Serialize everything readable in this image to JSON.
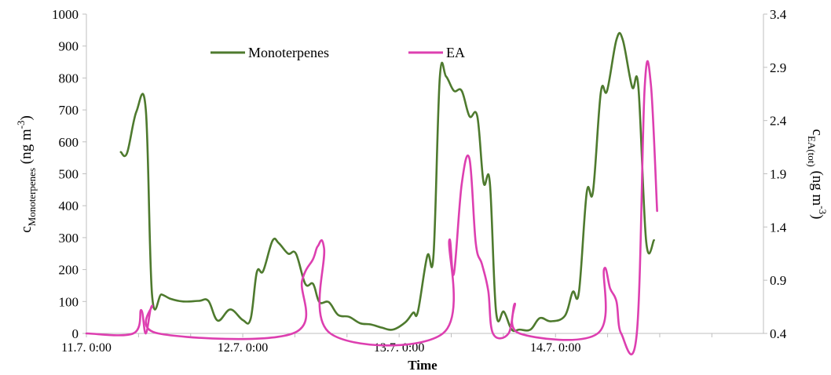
{
  "chart_data": {
    "type": "line",
    "xlabel": "Time",
    "x_ticks": [
      "11.7. 0:00",
      "12.7. 0:00",
      "13.7. 0:00",
      "14.7. 0:00"
    ],
    "xlim_days": [
      0,
      4.33
    ],
    "ylabel_left": {
      "base": "c",
      "sub": "Monoterpenes",
      "unit": " (ng m",
      "sup": "-3",
      "close": ")"
    },
    "ylabel_right": {
      "base": "c",
      "sub": "EA(tot)",
      "unit": " (ng m",
      "sup": "-3",
      "close": ")"
    },
    "ylim_left": [
      0,
      1000
    ],
    "ylim_right": [
      0.4,
      3.4
    ],
    "yticks_left": [
      "0",
      "100",
      "200",
      "300",
      "400",
      "500",
      "600",
      "700",
      "800",
      "900",
      "1000"
    ],
    "yticks_right": [
      "0.4",
      "0.9",
      "1.4",
      "1.9",
      "2.4",
      "2.9",
      "3.4"
    ],
    "legend_position": "top-center",
    "series": [
      {
        "name": "Monoterpenes",
        "axis": "left",
        "color": "#4e7a2e",
        "points": [
          [
            0.22,
            568
          ],
          [
            0.26,
            565
          ],
          [
            0.32,
            695
          ],
          [
            0.38,
            700
          ],
          [
            0.42,
            120
          ],
          [
            0.48,
            122
          ],
          [
            0.54,
            108
          ],
          [
            0.62,
            100
          ],
          [
            0.72,
            102
          ],
          [
            0.78,
            102
          ],
          [
            0.84,
            40
          ],
          [
            0.92,
            75
          ],
          [
            1.0,
            42
          ],
          [
            1.05,
            45
          ],
          [
            1.09,
            192
          ],
          [
            1.13,
            195
          ],
          [
            1.19,
            290
          ],
          [
            1.23,
            283
          ],
          [
            1.29,
            250
          ],
          [
            1.34,
            250
          ],
          [
            1.4,
            155
          ],
          [
            1.45,
            155
          ],
          [
            1.49,
            98
          ],
          [
            1.55,
            98
          ],
          [
            1.61,
            58
          ],
          [
            1.68,
            52
          ],
          [
            1.75,
            32
          ],
          [
            1.82,
            28
          ],
          [
            1.89,
            18
          ],
          [
            1.96,
            12
          ],
          [
            2.04,
            35
          ],
          [
            2.09,
            65
          ],
          [
            2.12,
            68
          ],
          [
            2.18,
            243
          ],
          [
            2.22,
            246
          ],
          [
            2.26,
            800
          ],
          [
            2.3,
            805
          ],
          [
            2.35,
            760
          ],
          [
            2.4,
            760
          ],
          [
            2.45,
            680
          ],
          [
            2.5,
            680
          ],
          [
            2.54,
            473
          ],
          [
            2.58,
            473
          ],
          [
            2.62,
            68
          ],
          [
            2.67,
            68
          ],
          [
            2.72,
            12
          ],
          [
            2.77,
            12
          ],
          [
            2.84,
            12
          ],
          [
            2.9,
            48
          ],
          [
            2.97,
            38
          ],
          [
            3.06,
            55
          ],
          [
            3.11,
            130
          ],
          [
            3.15,
            130
          ],
          [
            3.2,
            442
          ],
          [
            3.24,
            445
          ],
          [
            3.29,
            755
          ],
          [
            3.33,
            760
          ],
          [
            3.39,
            920
          ],
          [
            3.43,
            920
          ],
          [
            3.49,
            772
          ],
          [
            3.53,
            772
          ],
          [
            3.58,
            288
          ],
          [
            3.63,
            292
          ]
        ]
      },
      {
        "name": "EA",
        "axis": "right",
        "color": "#dd3fb0",
        "points": [
          [
            0.0,
            0.4
          ],
          [
            0.3,
            0.4
          ],
          [
            0.35,
            0.62
          ],
          [
            0.38,
            0.4
          ],
          [
            0.42,
            0.66
          ],
          [
            0.46,
            0.4
          ],
          [
            1.32,
            0.4
          ],
          [
            1.38,
            0.9
          ],
          [
            1.45,
            1.1
          ],
          [
            1.48,
            1.22
          ],
          [
            1.52,
            1.2
          ],
          [
            1.56,
            0.4
          ],
          [
            2.28,
            0.4
          ],
          [
            2.32,
            1.27
          ],
          [
            2.35,
            0.96
          ],
          [
            2.4,
            1.8
          ],
          [
            2.45,
            2.04
          ],
          [
            2.49,
            1.25
          ],
          [
            2.53,
            1.05
          ],
          [
            2.57,
            0.8
          ],
          [
            2.6,
            0.4
          ],
          [
            2.7,
            0.4
          ],
          [
            2.74,
            0.68
          ],
          [
            2.77,
            0.4
          ],
          [
            3.27,
            0.4
          ],
          [
            3.31,
            1.0
          ],
          [
            3.35,
            0.82
          ],
          [
            3.39,
            0.7
          ],
          [
            3.42,
            0.4
          ],
          [
            3.52,
            0.4
          ],
          [
            3.57,
            2.7
          ],
          [
            3.61,
            2.74
          ],
          [
            3.65,
            1.55
          ]
        ]
      }
    ]
  },
  "colors": {
    "axis": "#bfbfbf",
    "text": "#000000"
  }
}
